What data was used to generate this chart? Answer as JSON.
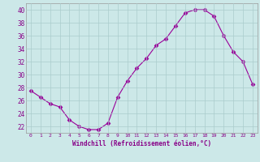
{
  "x": [
    0,
    1,
    2,
    3,
    4,
    5,
    6,
    7,
    8,
    9,
    10,
    11,
    12,
    13,
    14,
    15,
    16,
    17,
    18,
    19,
    20,
    21,
    22,
    23
  ],
  "y": [
    27.5,
    26.5,
    25.5,
    25.0,
    23.0,
    22.0,
    21.5,
    21.5,
    22.5,
    26.5,
    29.0,
    31.0,
    32.5,
    34.5,
    35.5,
    37.5,
    39.5,
    40.0,
    40.0,
    39.0,
    36.0,
    33.5,
    32.0,
    28.5
  ],
  "line_color": "#990099",
  "marker": "D",
  "marker_size": 2.5,
  "bg_color": "#cce8e8",
  "grid_color": "#aacccc",
  "xlabel": "Windchill (Refroidissement éolien,°C)",
  "tick_color": "#880088",
  "xlim": [
    -0.5,
    23.5
  ],
  "ylim": [
    21.0,
    41.0
  ],
  "yticks": [
    22,
    24,
    26,
    28,
    30,
    32,
    34,
    36,
    38,
    40
  ],
  "xticks": [
    0,
    1,
    2,
    3,
    4,
    5,
    6,
    7,
    8,
    9,
    10,
    11,
    12,
    13,
    14,
    15,
    16,
    17,
    18,
    19,
    20,
    21,
    22,
    23
  ]
}
